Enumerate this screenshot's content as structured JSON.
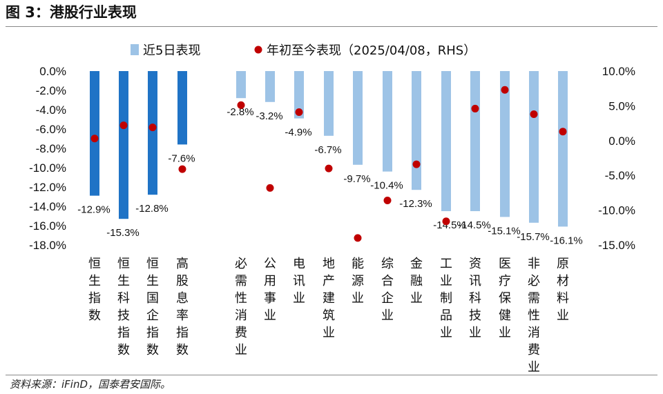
{
  "title": "图 3：港股行业表现",
  "source": "资料来源：iFinD，国泰君安国际。",
  "chart_data": {
    "type": "bar",
    "categories": [
      "恒生指数",
      "恒生科技指数",
      "恒生国企指数",
      "高股息率指数",
      "必需性消费业",
      "公用事业",
      "电讯业",
      "地产建筑业",
      "能源业",
      "综合企业",
      "金融业",
      "工业制品业",
      "资讯科技业",
      "医疗保健业",
      "非必需性消费业",
      "原材料业"
    ],
    "series": [
      {
        "name": "近5日表现",
        "axis": "left",
        "values": [
          -12.9,
          -15.3,
          -12.8,
          -7.6,
          -2.8,
          -3.2,
          -4.9,
          -6.7,
          -9.7,
          -10.4,
          -12.3,
          -14.5,
          -14.5,
          -15.1,
          -15.7,
          -16.1
        ],
        "labels": [
          "-12.9%",
          "-15.3%",
          "-12.8%",
          "-7.6%",
          "-2.8%",
          "-3.2%",
          "-4.9%",
          "-6.7%",
          "-9.7%",
          "-10.4%",
          "-12.3%",
          "-14.5%",
          "-14.5%",
          "-15.1%",
          "-15.7%",
          "-16.1%"
        ]
      },
      {
        "name": "年初至今表现（2025/04/08，RHS）",
        "axis": "right",
        "type": "scatter",
        "values": [
          0.3,
          2.2,
          1.9,
          -4.1,
          5.1,
          -6.8,
          4.1,
          -4.0,
          -14.0,
          -8.6,
          -3.4,
          -11.6,
          4.6,
          7.3,
          3.8,
          1.3
        ]
      }
    ],
    "ylim_left": [
      -18,
      0
    ],
    "yticks_left": [
      "0.0%",
      "-2.0%",
      "-4.0%",
      "-6.0%",
      "-8.0%",
      "-10.0%",
      "-12.0%",
      "-14.0%",
      "-16.0%",
      "-18.0%"
    ],
    "ylim_right": [
      -15,
      10
    ],
    "yticks_right": [
      "10.0%",
      "5.0%",
      "0.0%",
      "-5.0%",
      "-10.0%",
      "-15.0%"
    ],
    "colors": {
      "index_bar": "#1f73c6",
      "sector_bar": "#9dc3e6",
      "dot": "#c00000",
      "legend_bar": "#9dc3e6"
    },
    "legend": "top"
  }
}
